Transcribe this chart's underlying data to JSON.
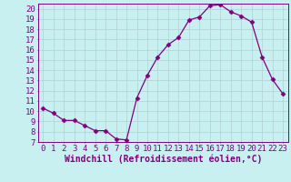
{
  "x": [
    0,
    1,
    2,
    3,
    4,
    5,
    6,
    7,
    8,
    9,
    10,
    11,
    12,
    13,
    14,
    15,
    16,
    17,
    18,
    19,
    20,
    21,
    22,
    23
  ],
  "y": [
    10.3,
    9.8,
    9.1,
    9.1,
    8.6,
    8.1,
    8.1,
    7.3,
    7.2,
    11.3,
    13.5,
    15.3,
    16.5,
    17.2,
    18.9,
    19.2,
    20.3,
    20.4,
    19.7,
    19.3,
    18.7,
    15.3,
    13.1,
    11.7
  ],
  "line_color": "#800080",
  "marker": "D",
  "marker_size": 2.5,
  "bg_color": "#c8f0f0",
  "grid_color": "#b0d0d0",
  "xlabel": "Windchill (Refroidissement éolien,°C)",
  "xlim": [
    -0.5,
    23.5
  ],
  "ylim": [
    7,
    20.5
  ],
  "yticks": [
    7,
    8,
    9,
    10,
    11,
    12,
    13,
    14,
    15,
    16,
    17,
    18,
    19,
    20
  ],
  "xticks": [
    0,
    1,
    2,
    3,
    4,
    5,
    6,
    7,
    8,
    9,
    10,
    11,
    12,
    13,
    14,
    15,
    16,
    17,
    18,
    19,
    20,
    21,
    22,
    23
  ],
  "tick_color": "#800080",
  "label_color": "#800080",
  "axis_color": "#800080",
  "font_size": 6.5,
  "xlabel_fontsize": 7
}
